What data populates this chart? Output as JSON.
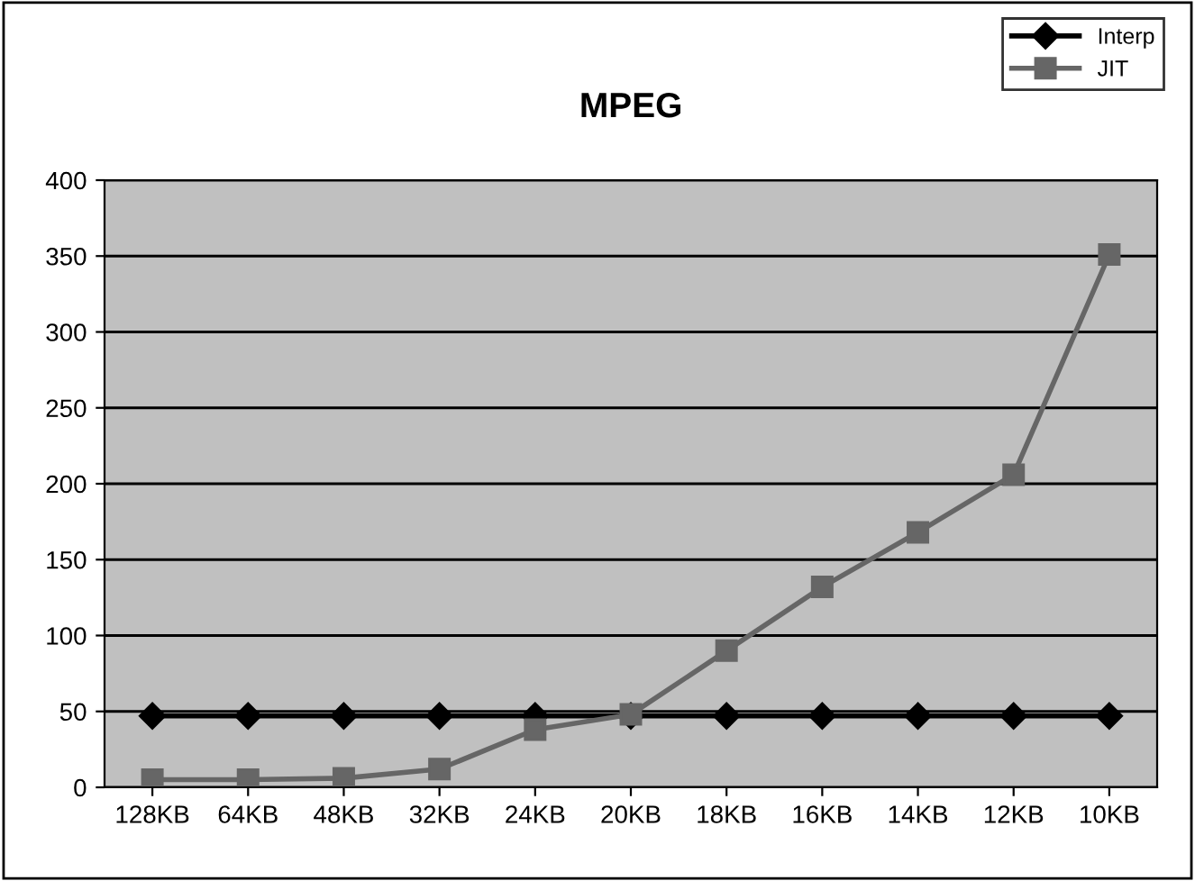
{
  "chart_data": {
    "type": "line",
    "title": "MPEG",
    "categories": [
      "128KB",
      "64KB",
      "48KB",
      "32KB",
      "24KB",
      "20KB",
      "18KB",
      "16KB",
      "14KB",
      "12KB",
      "10KB"
    ],
    "series": [
      {
        "name": "Interp",
        "color": "#000000",
        "marker": "diamond",
        "values": [
          47,
          47,
          47,
          47,
          47,
          47,
          47,
          47,
          47,
          47,
          47
        ]
      },
      {
        "name": "JIT",
        "color": "#666666",
        "marker": "square",
        "values": [
          5,
          5,
          6,
          12,
          38,
          48,
          90,
          132,
          168,
          206,
          351
        ]
      }
    ],
    "ylim": [
      0,
      400
    ],
    "yticks": [
      0,
      50,
      100,
      150,
      200,
      250,
      300,
      350,
      400
    ],
    "grid": "y",
    "legend": "top right",
    "line_style": "solid"
  }
}
